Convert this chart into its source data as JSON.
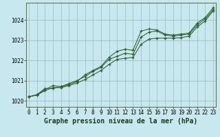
{
  "title": "Graphe pression niveau de la mer (hPa)",
  "bg_color": "#c8e8f0",
  "grid_color": "#99bbbb",
  "line_color": "#2d5e2d",
  "x_ticks": [
    0,
    1,
    2,
    3,
    4,
    5,
    6,
    7,
    8,
    9,
    10,
    11,
    12,
    13,
    14,
    15,
    16,
    17,
    18,
    19,
    20,
    21,
    22,
    23
  ],
  "y_ticks": [
    1020,
    1021,
    1022,
    1023,
    1024
  ],
  "ylim": [
    1019.7,
    1024.85
  ],
  "xlim": [
    -0.3,
    23.3
  ],
  "series1_x": [
    0,
    1,
    2,
    3,
    4,
    5,
    6,
    7,
    8,
    9,
    10,
    11,
    12,
    13,
    14,
    15,
    16,
    17,
    18,
    19,
    20,
    21,
    22,
    23
  ],
  "series1_y": [
    1020.2,
    1020.3,
    1020.55,
    1020.75,
    1020.7,
    1020.85,
    1021.0,
    1021.2,
    1021.45,
    1021.65,
    1022.05,
    1022.2,
    1022.35,
    1022.3,
    1023.15,
    1023.4,
    1023.45,
    1023.25,
    1023.2,
    1023.25,
    1023.3,
    1023.75,
    1024.05,
    1024.5
  ],
  "series2_x": [
    0,
    1,
    2,
    3,
    4,
    5,
    6,
    7,
    8,
    9,
    10,
    11,
    12,
    13,
    14,
    15,
    16,
    17,
    18,
    19,
    20,
    21,
    22,
    23
  ],
  "series2_y": [
    1020.2,
    1020.28,
    1020.5,
    1020.65,
    1020.65,
    1020.75,
    1020.88,
    1021.05,
    1021.28,
    1021.5,
    1021.8,
    1022.05,
    1022.1,
    1022.15,
    1022.8,
    1023.05,
    1023.1,
    1023.1,
    1023.1,
    1023.12,
    1023.2,
    1023.65,
    1023.95,
    1024.45
  ],
  "series3_x": [
    0,
    1,
    2,
    3,
    4,
    5,
    6,
    7,
    8,
    9,
    10,
    11,
    12,
    13,
    14,
    15,
    16,
    17,
    18,
    19,
    20,
    21,
    22,
    23
  ],
  "series3_y": [
    1020.2,
    1020.3,
    1020.6,
    1020.62,
    1020.7,
    1020.8,
    1020.95,
    1021.28,
    1021.5,
    1021.7,
    1022.15,
    1022.45,
    1022.55,
    1022.5,
    1023.45,
    1023.55,
    1023.5,
    1023.3,
    1023.25,
    1023.3,
    1023.35,
    1023.85,
    1024.12,
    1024.6
  ],
  "title_fontsize": 7,
  "tick_fontsize": 5.5,
  "marker": "+"
}
